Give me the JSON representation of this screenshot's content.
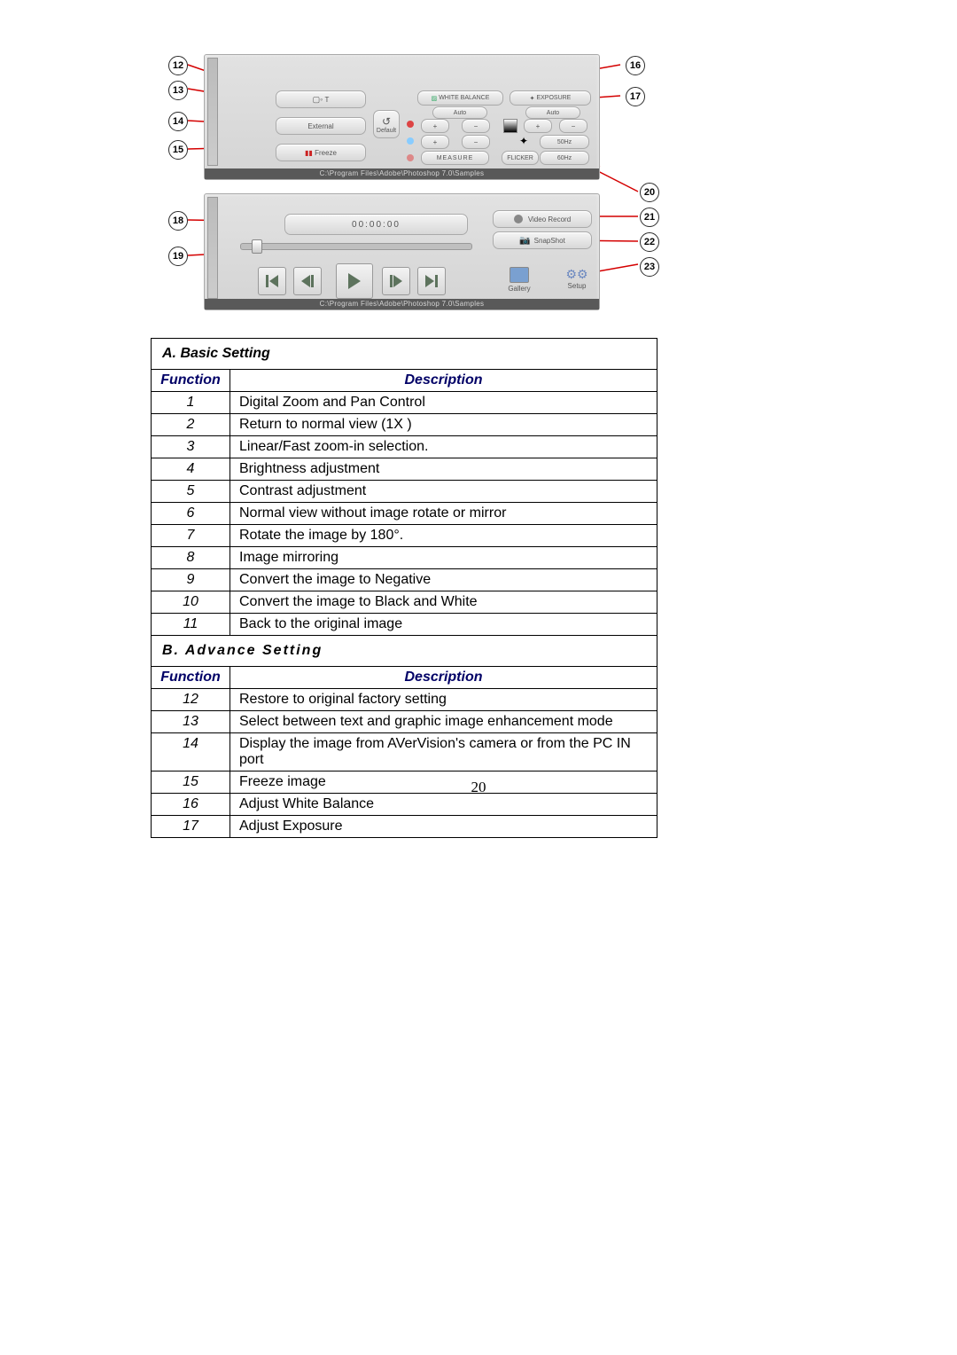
{
  "colors": {
    "leader": "#d40000",
    "header_text": "#000066",
    "border": "#000000"
  },
  "figure": {
    "top_panel": {
      "path_text": "C:\\Program Files\\Adobe\\Photoshop 7.0\\Samples",
      "buttons": {
        "text_graphic": "T",
        "external": "External",
        "freeze": "Freeze",
        "default": "Default",
        "white_balance": "WHITE BALANCE",
        "exposure": "EXPOSURE",
        "auto_left": "Auto",
        "auto_right": "Auto",
        "measure": "MEASURE",
        "flicker": "FLICKER",
        "fifty": "50Hz",
        "sixty": "60Hz",
        "plus": "+",
        "minus": "−"
      }
    },
    "bottom_panel": {
      "timecode": "00:00:00",
      "video_record": "Video Record",
      "snapshot": "SnapShot",
      "gallery": "Gallery",
      "setup": "Setup",
      "path_text": "C:\\Program Files\\Adobe\\Photoshop 7.0\\Samples"
    },
    "callouts_left": {
      "12": "12",
      "13": "13",
      "14": "14",
      "15": "15",
      "18": "18",
      "19": "19"
    },
    "callouts_right": {
      "16": "16",
      "17": "17",
      "20": "20",
      "21": "21",
      "22": "22",
      "23": "23"
    }
  },
  "tables": {
    "sectionA": {
      "title": "A. Basic Setting",
      "header": {
        "func": "Function",
        "desc": "Description"
      },
      "rows": [
        {
          "n": "1",
          "d": "Digital Zoom and Pan Control"
        },
        {
          "n": "2",
          "d": "Return to normal view (1X )"
        },
        {
          "n": "3",
          "d": "Linear/Fast zoom-in selection."
        },
        {
          "n": "4",
          "d": "Brightness adjustment"
        },
        {
          "n": "5",
          "d": "Contrast adjustment"
        },
        {
          "n": "6",
          "d": "Normal view without image rotate or mirror"
        },
        {
          "n": "7",
          "d": "Rotate the image by 180°."
        },
        {
          "n": "8",
          "d": "Image mirroring"
        },
        {
          "n": "9",
          "d": "Convert the image to Negative"
        },
        {
          "n": "10",
          "d": "Convert the image to Black and White"
        },
        {
          "n": "11",
          "d": "Back to the original image"
        }
      ]
    },
    "sectionB": {
      "title": "B. Advance Setting",
      "header": {
        "func": "Function",
        "desc": "Description"
      },
      "rows": [
        {
          "n": "12",
          "d": "Restore to original factory setting"
        },
        {
          "n": "13",
          "d": "Select between text and graphic image enhancement mode"
        },
        {
          "n": "14",
          "d": "Display the image from AVerVision's camera or from the PC IN port"
        },
        {
          "n": "15",
          "d": "Freeze image"
        },
        {
          "n": "16",
          "d": "Adjust White Balance"
        },
        {
          "n": "17",
          "d": "Adjust Exposure"
        }
      ]
    }
  },
  "page_number": "20"
}
